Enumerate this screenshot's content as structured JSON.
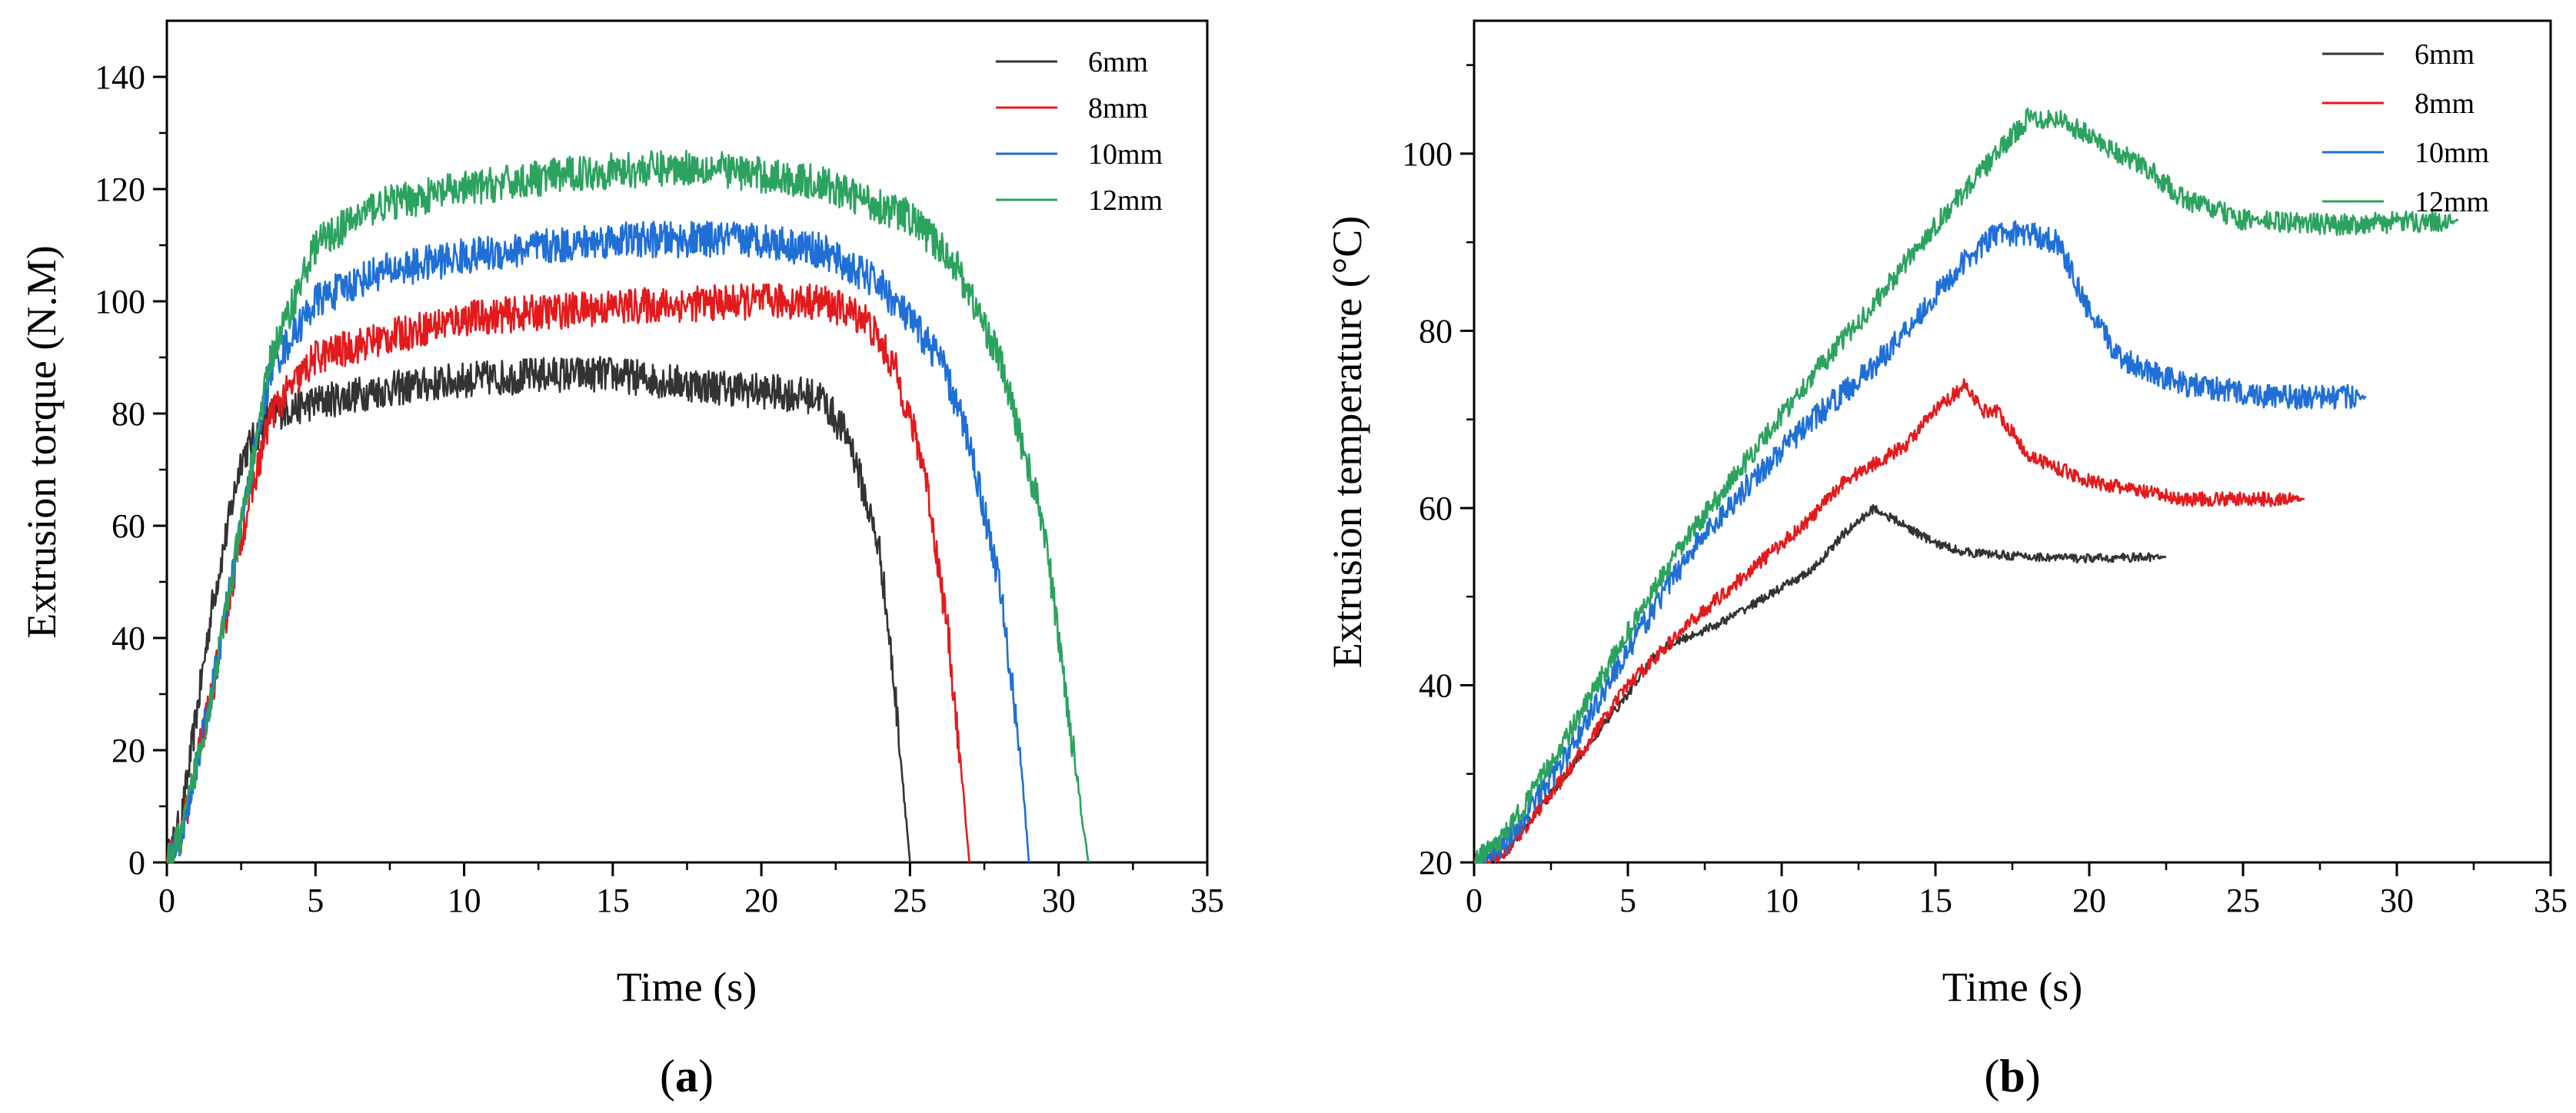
{
  "chart_data": [
    {
      "type": "line",
      "panel_label": "a",
      "xlabel": "Time (s)",
      "ylabel": "Extrusion torque (N.M)",
      "xlim": [
        0,
        35
      ],
      "ylim": [
        0,
        150
      ],
      "xticks": [
        0,
        5,
        10,
        15,
        20,
        25,
        30,
        35
      ],
      "yticks": [
        0,
        20,
        40,
        60,
        80,
        100,
        120,
        140
      ],
      "legend_position": "top-right",
      "grid": false,
      "series": [
        {
          "name": "6mm",
          "color": "#333333",
          "noise": 3.2,
          "x": [
            0,
            0.5,
            1.5,
            2.5,
            3.5,
            5,
            7,
            10,
            13,
            15,
            18,
            20,
            22,
            23,
            24,
            24.5,
            25
          ],
          "y": [
            0,
            8,
            45,
            72,
            80,
            82,
            84,
            86,
            87,
            87,
            85,
            84,
            83,
            75,
            55,
            30,
            0
          ]
        },
        {
          "name": "8mm",
          "color": "#e31a1c",
          "noise": 3.2,
          "x": [
            0,
            0.5,
            1.5,
            2.5,
            3.5,
            5,
            7,
            10,
            15,
            20,
            22,
            23.5,
            24.5,
            25.5,
            26.3,
            27
          ],
          "y": [
            0,
            5,
            30,
            58,
            80,
            90,
            93,
            97,
            99,
            100,
            100,
            97,
            88,
            70,
            40,
            0
          ]
        },
        {
          "name": "10mm",
          "color": "#1f6fd6",
          "noise": 3.2,
          "x": [
            0,
            0.5,
            1.5,
            2.5,
            3.5,
            5,
            7,
            10,
            15,
            20,
            22,
            24,
            26,
            27,
            28,
            28.7,
            29
          ],
          "y": [
            0,
            5,
            30,
            60,
            88,
            100,
            105,
            108,
            111,
            111,
            109,
            103,
            90,
            75,
            50,
            20,
            0
          ]
        },
        {
          "name": "12mm",
          "color": "#2ca25f",
          "noise": 3.2,
          "x": [
            0,
            0.5,
            1.5,
            2.5,
            3.5,
            5,
            7,
            10,
            14,
            18,
            22,
            25,
            26.5,
            28,
            29.5,
            30.5,
            31
          ],
          "y": [
            0,
            5,
            30,
            60,
            90,
            110,
            117,
            120,
            123,
            124,
            121,
            115,
            107,
            90,
            60,
            20,
            0
          ]
        }
      ]
    },
    {
      "type": "line",
      "panel_label": "b",
      "xlabel": "Time (s)",
      "ylabel": "Extrusion temperature (°C)",
      "xlim": [
        0,
        35
      ],
      "ylim": [
        20,
        115
      ],
      "xticks": [
        0,
        5,
        10,
        15,
        20,
        25,
        30,
        35
      ],
      "yticks": [
        20,
        40,
        60,
        80,
        100
      ],
      "legend_position": "top-right",
      "grid": false,
      "series": [
        {
          "name": "6mm",
          "color": "#333333",
          "noise": 0.5,
          "x": [
            0,
            1,
            3,
            5,
            6,
            8,
            10,
            11,
            12,
            13,
            14,
            15,
            16,
            18,
            20,
            22.5
          ],
          "y": [
            20,
            21,
            30,
            39,
            44,
            47,
            51,
            53,
            57,
            60,
            58,
            56,
            55,
            54.5,
            54.3,
            54.5
          ]
        },
        {
          "name": "8mm",
          "color": "#e31a1c",
          "noise": 0.8,
          "x": [
            0,
            1,
            3,
            5,
            7,
            9,
            11,
            12,
            14,
            15,
            16,
            16.5,
            17,
            18,
            20,
            23,
            27
          ],
          "y": [
            20,
            21,
            30,
            40,
            47,
            53,
            59,
            63,
            67,
            71,
            74,
            71,
            71,
            66,
            63,
            61,
            61
          ]
        },
        {
          "name": "10mm",
          "color": "#1f6fd6",
          "noise": 1.4,
          "x": [
            0,
            1,
            3,
            5,
            7,
            9,
            11,
            13,
            15,
            16,
            17,
            18,
            19,
            20,
            21,
            23,
            26,
            29
          ],
          "y": [
            20,
            22,
            32,
            44,
            55,
            63,
            70,
            76,
            84,
            88,
            91,
            91,
            90,
            82,
            77,
            74,
            72.5,
            72.5
          ]
        },
        {
          "name": "12mm",
          "color": "#2ca25f",
          "noise": 1.2,
          "x": [
            0,
            1,
            3,
            5,
            7,
            9,
            11,
            13,
            15,
            17,
            18,
            19,
            20,
            21,
            22,
            23,
            25,
            28,
            32
          ],
          "y": [
            20,
            23,
            34,
            46,
            57,
            66,
            75,
            83,
            92,
            100,
            104,
            104,
            102,
            100,
            98,
            95,
            92.5,
            92,
            92.5
          ]
        }
      ]
    }
  ]
}
